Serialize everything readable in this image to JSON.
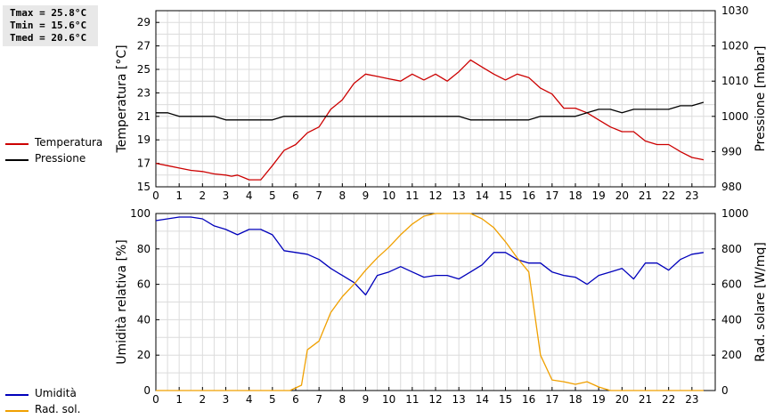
{
  "stats": {
    "tmax": "Tmax = 25.8°C",
    "tmin": "Tmin = 15.6°C",
    "tmed": "Tmed = 20.6°C"
  },
  "legend_top": [
    {
      "label": "Temperatura",
      "color": "#cc0000"
    },
    {
      "label": "Pressione",
      "color": "#000000"
    }
  ],
  "legend_bottom": [
    {
      "label": "Umidità",
      "color": "#0000bb"
    },
    {
      "label": "Rad. sol.",
      "color": "#f0a000"
    }
  ],
  "chart_data": [
    {
      "type": "line",
      "xlim": [
        0,
        24
      ],
      "x_ticks": [
        "0",
        "1",
        "2",
        "3",
        "4",
        "5",
        "6",
        "7",
        "8",
        "9",
        "10",
        "11",
        "12",
        "13",
        "14",
        "15",
        "16",
        "17",
        "18",
        "19",
        "20",
        "21",
        "22",
        "23"
      ],
      "ylabel": "Temperatura [°C]",
      "ylim": [
        15,
        30
      ],
      "y_ticks": [
        "15",
        "17",
        "19",
        "21",
        "23",
        "25",
        "27",
        "29"
      ],
      "y2label": "Pressione [mbar]",
      "y2lim": [
        980,
        1030
      ],
      "y2_ticks": [
        "980",
        "990",
        "1000",
        "1010",
        "1020",
        "1030"
      ],
      "grid": true,
      "series": [
        {
          "name": "Temperatura",
          "axis": "left",
          "color": "#cc0000",
          "x": [
            0,
            0.5,
            1,
            1.5,
            2,
            2.5,
            3,
            3.25,
            3.5,
            3.75,
            4,
            4.25,
            4.5,
            5,
            5.5,
            6,
            6.5,
            7,
            7.5,
            8,
            8.5,
            9,
            9.5,
            10,
            10.5,
            11,
            11.5,
            12,
            12.5,
            13,
            13.5,
            14,
            14.5,
            15,
            15.5,
            16,
            16.5,
            17,
            17.5,
            18,
            18.5,
            19,
            19.5,
            20,
            20.5,
            21,
            21.5,
            22,
            22.5,
            23,
            23.5
          ],
          "y": [
            17.0,
            16.8,
            16.6,
            16.4,
            16.3,
            16.1,
            16.0,
            15.9,
            16.0,
            15.8,
            15.6,
            15.6,
            15.6,
            16.8,
            18.1,
            18.6,
            19.6,
            20.1,
            21.6,
            22.4,
            23.8,
            24.6,
            24.4,
            24.2,
            24.0,
            24.6,
            24.1,
            24.6,
            24.0,
            24.8,
            25.8,
            25.2,
            24.6,
            24.1,
            24.6,
            24.3,
            23.4,
            22.9,
            21.7,
            21.7,
            21.3,
            20.7,
            20.1,
            19.7,
            19.7,
            18.9,
            18.6,
            18.6,
            18.0,
            17.5,
            17.3
          ]
        },
        {
          "name": "Pressione",
          "axis": "right",
          "color": "#000000",
          "x": [
            0,
            0.5,
            1,
            2,
            2.5,
            3,
            4,
            5,
            5.5,
            6,
            7,
            8,
            9,
            10,
            11,
            12,
            13,
            13.5,
            14,
            15,
            16,
            16.5,
            17,
            18,
            18.5,
            19,
            19.5,
            20,
            20.5,
            21,
            22,
            22.5,
            23,
            23.5
          ],
          "y": [
            1001,
            1001,
            1000,
            1000,
            1000,
            999,
            999,
            999,
            1000,
            1000,
            1000,
            1000,
            1000,
            1000,
            1000,
            1000,
            1000,
            999,
            999,
            999,
            999,
            1000,
            1000,
            1000,
            1001,
            1002,
            1002,
            1001,
            1002,
            1002,
            1002,
            1003,
            1003,
            1004
          ]
        }
      ]
    },
    {
      "type": "line",
      "xlim": [
        0,
        24
      ],
      "x_ticks": [
        "0",
        "1",
        "2",
        "3",
        "4",
        "5",
        "6",
        "7",
        "8",
        "9",
        "10",
        "11",
        "12",
        "13",
        "14",
        "15",
        "16",
        "17",
        "18",
        "19",
        "20",
        "21",
        "22",
        "23"
      ],
      "ylabel": "Umidità relativa [%]",
      "ylim": [
        0,
        100
      ],
      "y_ticks": [
        "0",
        "20",
        "40",
        "60",
        "80",
        "100"
      ],
      "y2label": "Rad. solare [W/mq]",
      "y2lim": [
        0,
        1000
      ],
      "y2_ticks": [
        "0",
        "200",
        "400",
        "600",
        "800",
        "1000"
      ],
      "grid": true,
      "series": [
        {
          "name": "Umidità",
          "axis": "left",
          "color": "#0000bb",
          "x": [
            0,
            0.5,
            1,
            1.5,
            2,
            2.5,
            3,
            3.5,
            4,
            4.5,
            5,
            5.5,
            6,
            6.5,
            7,
            7.5,
            8,
            8.5,
            9,
            9.5,
            10,
            10.5,
            11,
            11.5,
            12,
            12.5,
            13,
            13.5,
            14,
            14.5,
            15,
            15.5,
            16,
            16.5,
            17,
            17.5,
            18,
            18.5,
            19,
            19.5,
            20,
            20.5,
            21,
            21.5,
            22,
            22.5,
            23,
            23.5
          ],
          "y": [
            96,
            97,
            98,
            98,
            97,
            93,
            91,
            88,
            91,
            91,
            88,
            79,
            78,
            77,
            74,
            69,
            65,
            61,
            54,
            65,
            67,
            70,
            67,
            64,
            65,
            65,
            63,
            67,
            71,
            78,
            78,
            74,
            72,
            72,
            67,
            65,
            64,
            60,
            65,
            67,
            69,
            63,
            72,
            72,
            68,
            74,
            77,
            78
          ]
        },
        {
          "name": "Rad. sol.",
          "axis": "right",
          "color": "#f0a000",
          "x": [
            0,
            1,
            2,
            3,
            4,
            5,
            5.75,
            6.25,
            6.5,
            7,
            7.5,
            8,
            8.5,
            9,
            9.5,
            10,
            10.5,
            11,
            11.5,
            12,
            12.5,
            13,
            13.5,
            14,
            14.5,
            15,
            15.5,
            16,
            16.5,
            17,
            17.5,
            18,
            18.5,
            19,
            19.5,
            20,
            21,
            22,
            23,
            23.5
          ],
          "y": [
            0,
            0,
            0,
            0,
            0,
            0,
            0,
            30,
            230,
            280,
            440,
            530,
            600,
            680,
            750,
            810,
            880,
            940,
            985,
            1000,
            1000,
            1000,
            1000,
            970,
            920,
            840,
            750,
            670,
            200,
            60,
            50,
            35,
            50,
            20,
            0,
            0,
            0,
            0,
            0,
            0
          ]
        }
      ]
    }
  ]
}
